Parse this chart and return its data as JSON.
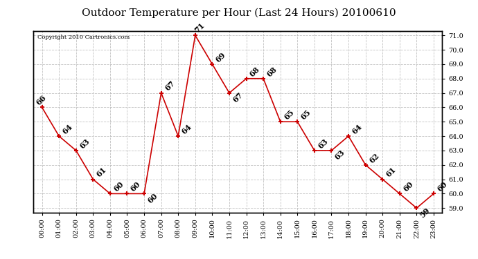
{
  "title": "Outdoor Temperature per Hour (Last 24 Hours) 20100610",
  "copyright_text": "Copyright 2010 Cartronics.com",
  "hours": [
    "00:00",
    "01:00",
    "02:00",
    "03:00",
    "04:00",
    "05:00",
    "06:00",
    "07:00",
    "08:00",
    "09:00",
    "10:00",
    "11:00",
    "12:00",
    "13:00",
    "14:00",
    "15:00",
    "16:00",
    "17:00",
    "18:00",
    "19:00",
    "20:00",
    "21:00",
    "22:00",
    "23:00"
  ],
  "temps": [
    66,
    64,
    63,
    61,
    60,
    60,
    60,
    67,
    64,
    71,
    69,
    67,
    68,
    68,
    65,
    65,
    63,
    63,
    64,
    62,
    61,
    60,
    59,
    60
  ],
  "line_color": "#cc0000",
  "marker_color": "#cc0000",
  "grid_color": "#bbbbbb",
  "bg_color": "#ffffff",
  "ylim_min": 59.0,
  "ylim_max": 71.0,
  "ytick_step": 1.0,
  "title_fontsize": 11,
  "label_fontsize": 7,
  "annotation_fontsize": 8,
  "copyright_fontsize": 6
}
